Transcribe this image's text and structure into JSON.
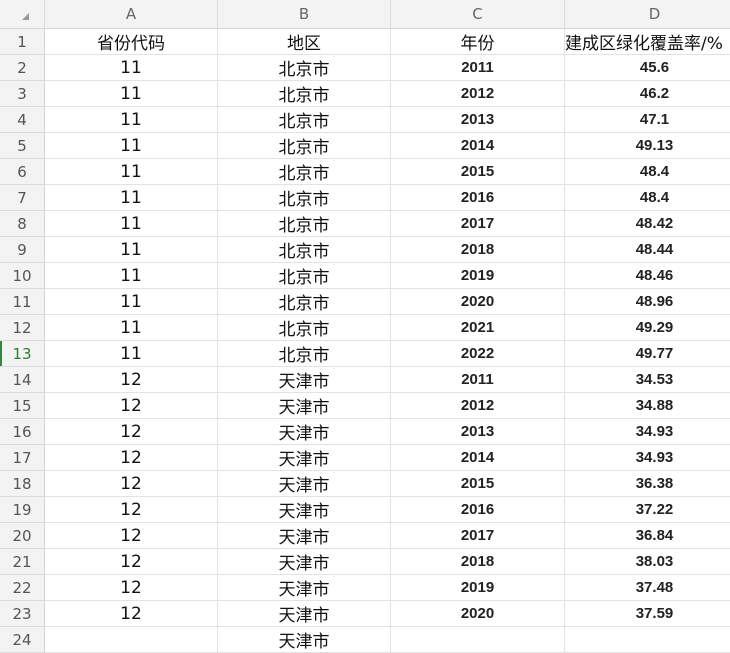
{
  "columns": [
    "A",
    "B",
    "C",
    "D"
  ],
  "header_row": {
    "row": "1",
    "cells": [
      "省份代码",
      "地区",
      "年份",
      "建成区绿化覆盖率/%"
    ]
  },
  "selected_row": "13",
  "accent_color": "#2e8b3d",
  "rows": [
    {
      "n": "2",
      "code": "11",
      "region": "北京市",
      "year": "2011",
      "value": "45.6"
    },
    {
      "n": "3",
      "code": "11",
      "region": "北京市",
      "year": "2012",
      "value": "46.2"
    },
    {
      "n": "4",
      "code": "11",
      "region": "北京市",
      "year": "2013",
      "value": "47.1"
    },
    {
      "n": "5",
      "code": "11",
      "region": "北京市",
      "year": "2014",
      "value": "49.13"
    },
    {
      "n": "6",
      "code": "11",
      "region": "北京市",
      "year": "2015",
      "value": "48.4"
    },
    {
      "n": "7",
      "code": "11",
      "region": "北京市",
      "year": "2016",
      "value": "48.4"
    },
    {
      "n": "8",
      "code": "11",
      "region": "北京市",
      "year": "2017",
      "value": "48.42"
    },
    {
      "n": "9",
      "code": "11",
      "region": "北京市",
      "year": "2018",
      "value": "48.44"
    },
    {
      "n": "10",
      "code": "11",
      "region": "北京市",
      "year": "2019",
      "value": "48.46"
    },
    {
      "n": "11",
      "code": "11",
      "region": "北京市",
      "year": "2020",
      "value": "48.96"
    },
    {
      "n": "12",
      "code": "11",
      "region": "北京市",
      "year": "2021",
      "value": "49.29"
    },
    {
      "n": "13",
      "code": "11",
      "region": "北京市",
      "year": "2022",
      "value": "49.77"
    },
    {
      "n": "14",
      "code": "12",
      "region": "天津市",
      "year": "2011",
      "value": "34.53"
    },
    {
      "n": "15",
      "code": "12",
      "region": "天津市",
      "year": "2012",
      "value": "34.88"
    },
    {
      "n": "16",
      "code": "12",
      "region": "天津市",
      "year": "2013",
      "value": "34.93"
    },
    {
      "n": "17",
      "code": "12",
      "region": "天津市",
      "year": "2014",
      "value": "34.93"
    },
    {
      "n": "18",
      "code": "12",
      "region": "天津市",
      "year": "2015",
      "value": "36.38"
    },
    {
      "n": "19",
      "code": "12",
      "region": "天津市",
      "year": "2016",
      "value": "37.22"
    },
    {
      "n": "20",
      "code": "12",
      "region": "天津市",
      "year": "2017",
      "value": "36.84"
    },
    {
      "n": "21",
      "code": "12",
      "region": "天津市",
      "year": "2018",
      "value": "38.03"
    },
    {
      "n": "22",
      "code": "12",
      "region": "天津市",
      "year": "2019",
      "value": "37.48"
    },
    {
      "n": "23",
      "code": "12",
      "region": "天津市",
      "year": "2020",
      "value": "37.59"
    },
    {
      "n": "24",
      "code": "",
      "region": "天津市",
      "year": "",
      "value": ""
    }
  ]
}
